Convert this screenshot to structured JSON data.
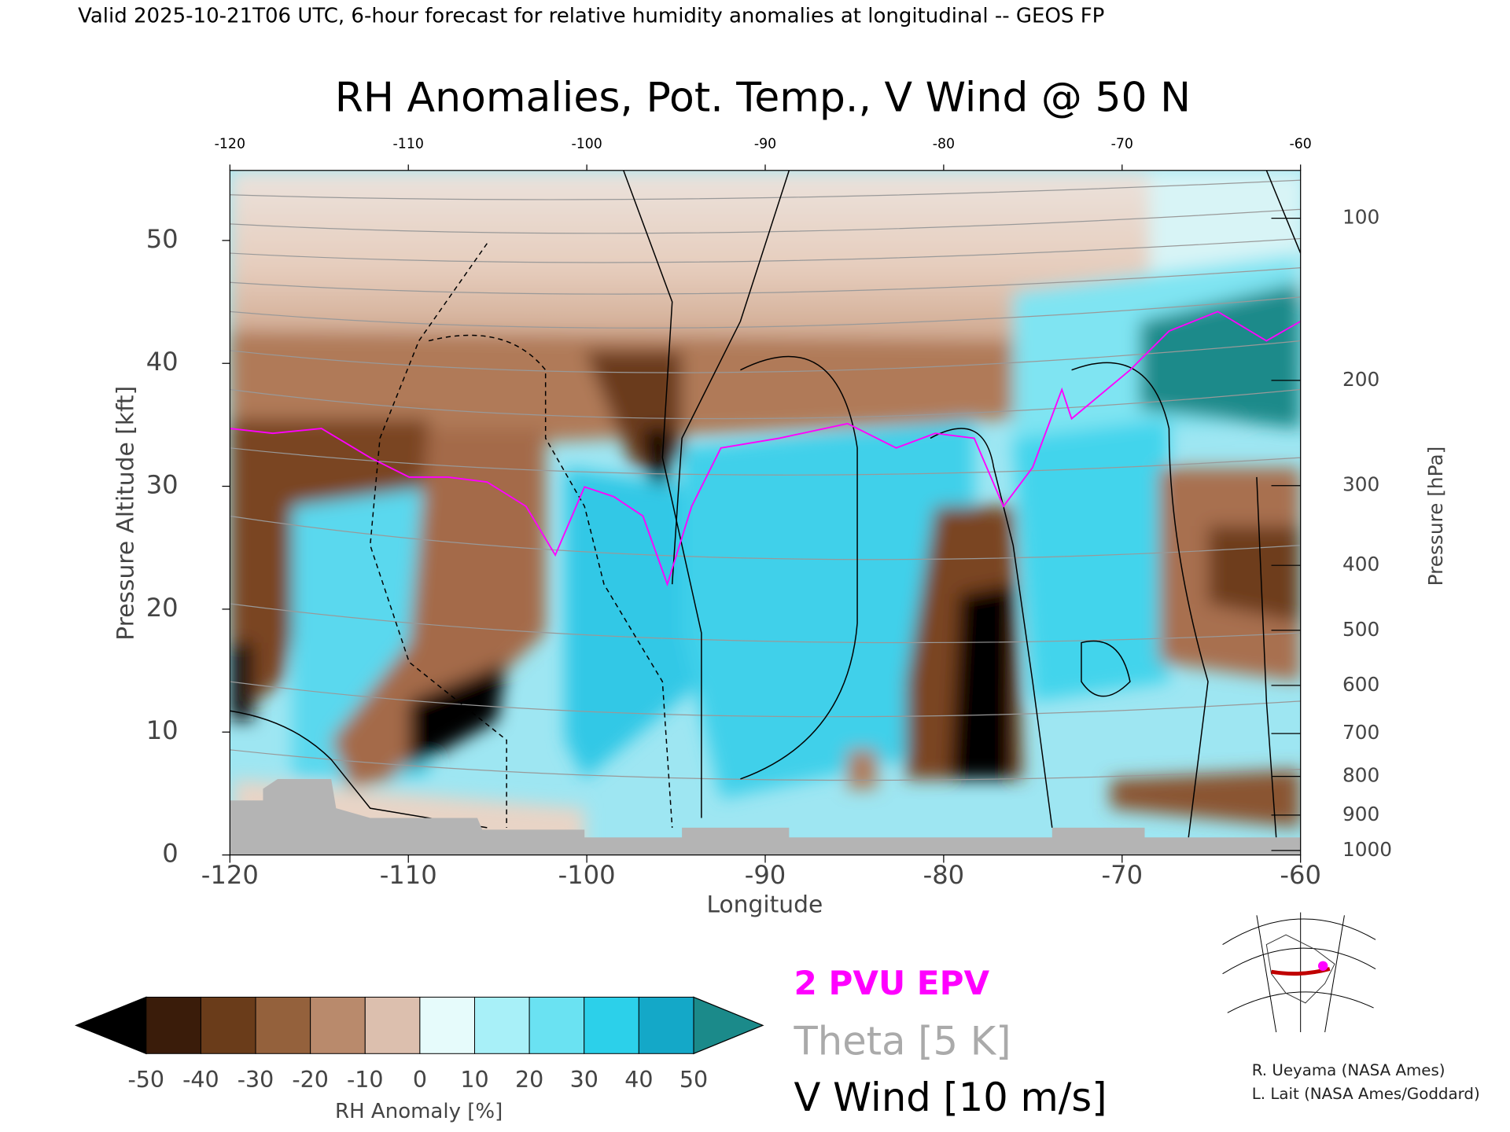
{
  "header": {
    "text": "Valid 2025-10-21T06 UTC, 6-hour forecast for relative humidity anomalies at longitudinal -- GEOS FP"
  },
  "chart_data": {
    "type": "cross-section",
    "title": "RH Anomalies, Pot. Temp., V Wind @ 50 N",
    "x_label": "Longitude",
    "y_label": "Pressure Altitude [kft]",
    "y2_label": "Pressure [hPa]",
    "xlim": [
      -120,
      -60
    ],
    "xticks": [
      -120,
      -110,
      -100,
      -90,
      -80,
      -70,
      -60
    ],
    "ylim": [
      0,
      55.7
    ],
    "yticks": [
      0,
      10,
      20,
      30,
      40,
      50
    ],
    "y2ticks": [
      100,
      200,
      300,
      400,
      500,
      600,
      700,
      800,
      900,
      1000
    ],
    "colorbar": {
      "label": "RH Anomaly [%]",
      "levels": [
        -50,
        -40,
        -30,
        -20,
        -10,
        0,
        10,
        20,
        30,
        40,
        50
      ],
      "colors": [
        "#3a1c0a",
        "#6a3c1a",
        "#94613c",
        "#b98a6c",
        "#dcbfae",
        "#e6fbfb",
        "#a8f0f8",
        "#6ae2f2",
        "#2cd0ea",
        "#14a8c8"
      ],
      "under_color": "#000000",
      "over_color": "#1b8a8a"
    },
    "legend": [
      {
        "name": "2 PVU EPV",
        "color": "#ff00ff"
      },
      {
        "name": "Theta [5 K]",
        "color": "#aaaaaa"
      },
      {
        "name": "V Wind [10 m/s]",
        "color": "#000000"
      }
    ]
  },
  "credits": [
    "R. Ueyama (NASA Ames)",
    "L. Lait (NASA Ames/Goddard)"
  ]
}
